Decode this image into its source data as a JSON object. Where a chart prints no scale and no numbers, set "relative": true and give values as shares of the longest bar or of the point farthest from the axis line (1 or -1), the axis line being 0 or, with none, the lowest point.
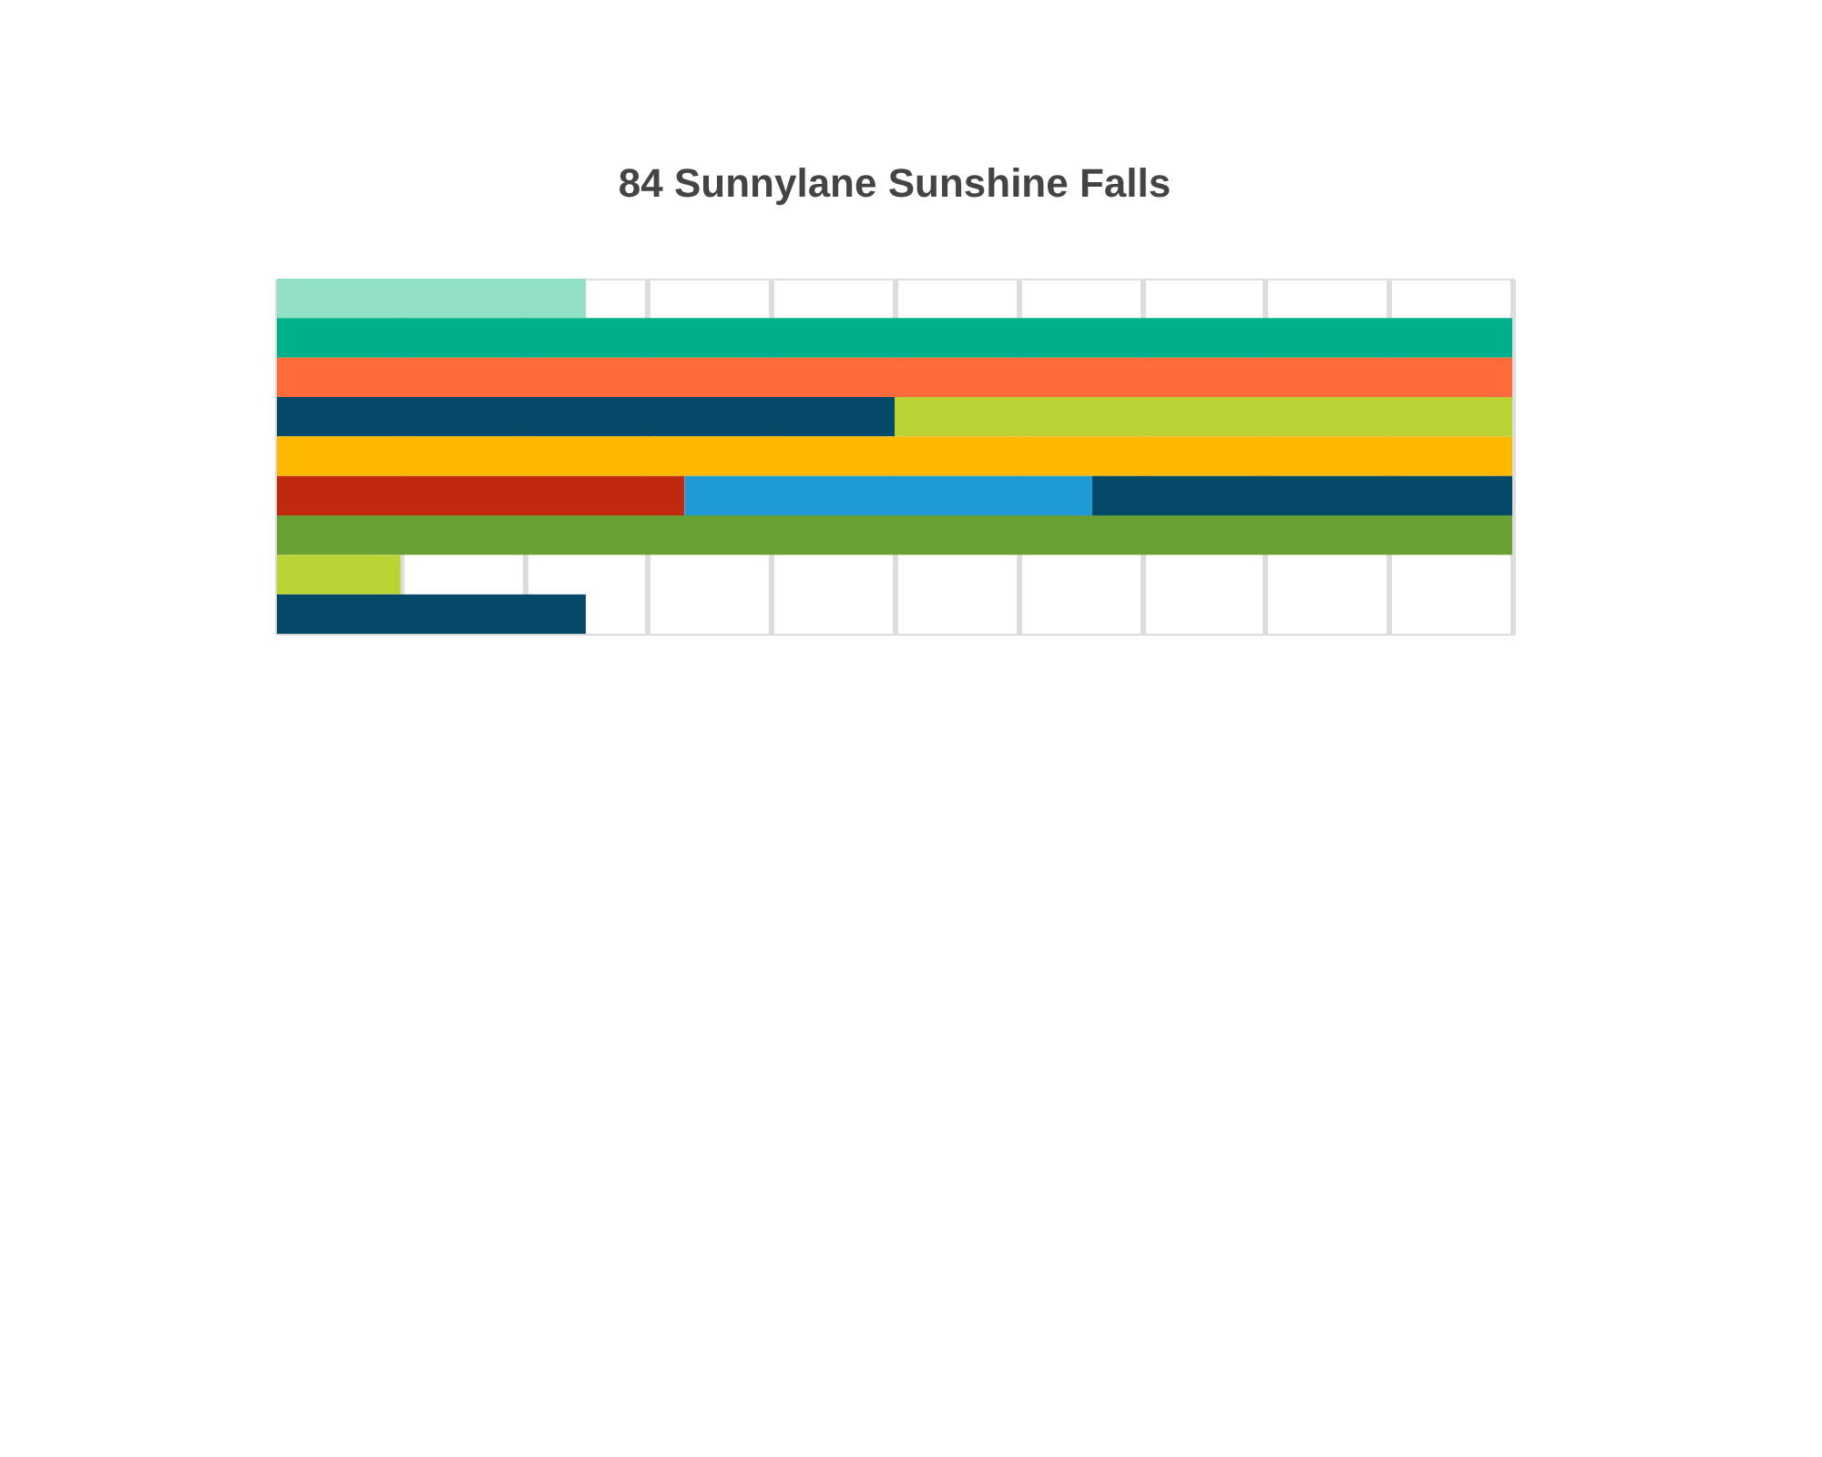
{
  "chart_data": {
    "type": "bar",
    "title": "84 Sunnylane Sunshine Falls",
    "orientation": "horizontal",
    "stacked": true,
    "relative": true,
    "grid": "x",
    "categories": [
      null,
      null,
      null,
      null,
      null,
      null,
      null,
      null,
      null
    ],
    "series": [
      {
        "colors": [
          "#93e1c5",
          "#00b08a",
          "#ff6b3b",
          "#044a68",
          "#ffb800",
          "#c1290f",
          "#69a033",
          "#bbd334",
          "#044a68"
        ],
        "values": [
          0.25,
          1,
          1,
          0.5,
          1,
          0.33,
          1,
          0.1,
          0.25
        ]
      },
      {
        "colors": [
          "#bbd334",
          "#bbd334",
          "#bbd334",
          "#bbd334",
          "#bbd334",
          "#1e9bd7",
          "#bbd334",
          "#bbd334",
          "#bbd334"
        ],
        "values": [
          null,
          null,
          null,
          0.5,
          null,
          0.33,
          null,
          null,
          null
        ]
      },
      {
        "colors": [
          "#044a68",
          "#044a68",
          "#044a68",
          "#044a68",
          "#044a68",
          "#044a68",
          "#044a68",
          "#044a68",
          "#044a68"
        ],
        "values": [
          null,
          null,
          null,
          null,
          null,
          0.34,
          null,
          null,
          null
        ]
      }
    ]
  }
}
